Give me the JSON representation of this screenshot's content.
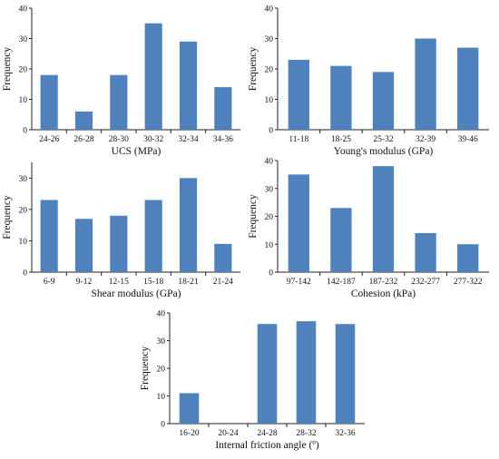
{
  "chart_data": [
    {
      "type": "bar",
      "categories": [
        "24-26",
        "26-28",
        "28-30",
        "30-32",
        "32-34",
        "34-36"
      ],
      "values": [
        18,
        6,
        18,
        35,
        29,
        14
      ],
      "xlabel": "UCS (MPa)",
      "ylabel": "Frequency",
      "ylim": [
        0,
        40
      ],
      "yticks": [
        0,
        10,
        20,
        30,
        40
      ],
      "grid": false,
      "bar_color": "#4f81bd"
    },
    {
      "type": "bar",
      "categories": [
        "11-18",
        "18-25",
        "25-32",
        "32-39",
        "39-46"
      ],
      "values": [
        23,
        21,
        19,
        30,
        27
      ],
      "xlabel": "Young's modulus (GPa)",
      "ylabel": "Frequency",
      "ylim": [
        0,
        40
      ],
      "yticks": [
        0,
        10,
        20,
        30,
        40
      ],
      "grid": false,
      "bar_color": "#4f81bd"
    },
    {
      "type": "bar",
      "categories": [
        "6-9",
        "9-12",
        "12-15",
        "15-18",
        "18-21",
        "21-24"
      ],
      "values": [
        23,
        17,
        18,
        23,
        30,
        9
      ],
      "xlabel": "Shear modulus (GPa)",
      "ylabel": "Frequency",
      "ylim": [
        0,
        35
      ],
      "yticks": [
        0,
        10,
        20,
        30
      ],
      "grid": false,
      "bar_color": "#4f81bd"
    },
    {
      "type": "bar",
      "categories": [
        "97-142",
        "142-187",
        "187-232",
        "232-277",
        "277-322"
      ],
      "values": [
        35,
        23,
        38,
        14,
        10
      ],
      "xlabel": "Cohesion (kPa)",
      "ylabel": "Frequency",
      "ylim": [
        0,
        40
      ],
      "yticks": [
        0,
        10,
        20,
        30,
        40
      ],
      "grid": false,
      "bar_color": "#4f81bd"
    },
    {
      "type": "bar",
      "categories": [
        "16-20",
        "20-24",
        "24-28",
        "28-32",
        "32-36"
      ],
      "values": [
        11,
        0,
        36,
        37,
        36
      ],
      "xlabel": "Internal friction angle (º)",
      "ylabel": "Frequency",
      "ylim": [
        0,
        40
      ],
      "yticks": [
        0,
        10,
        20,
        30,
        40
      ],
      "grid": false,
      "bar_color": "#4f81bd"
    }
  ]
}
